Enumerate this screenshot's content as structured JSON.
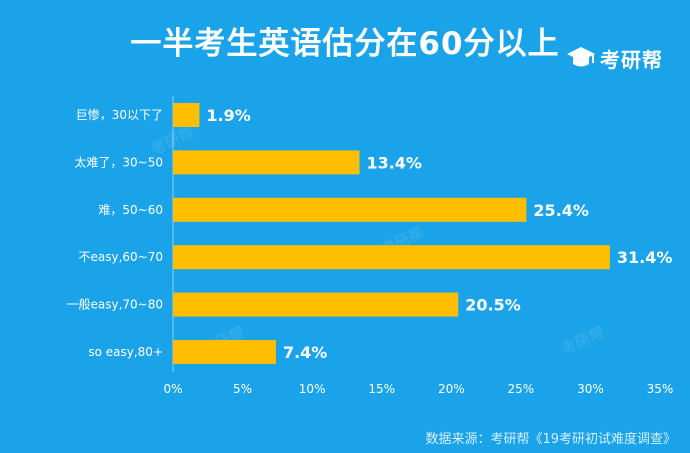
{
  "title": "一半考生英语估分在60分以上",
  "logo": {
    "text": "考研帮",
    "icon": "graduation-cap-icon"
  },
  "source": "数据来源：考研帮《19考研初试难度调查》",
  "colors": {
    "background": "#1aa3e8",
    "bar": "#ffbf00",
    "text": "#ffffff"
  },
  "chart_data": {
    "type": "bar",
    "orientation": "horizontal",
    "categories": [
      "巨惨，30以下了",
      "太难了，30~50",
      "难，50~60",
      "不easy,60~70",
      "一般easy,70~80",
      "so easy,80+"
    ],
    "values": [
      1.9,
      13.4,
      25.4,
      31.4,
      20.5,
      7.4
    ],
    "value_labels": [
      "1.9%",
      "13.4%",
      "25.4%",
      "31.4%",
      "20.5%",
      "7.4%"
    ],
    "x_ticks": [
      "0%",
      "5%",
      "10%",
      "15%",
      "20%",
      "25%",
      "30%",
      "35%"
    ],
    "xlim": [
      0,
      35
    ],
    "grid": false,
    "legend": "none"
  }
}
